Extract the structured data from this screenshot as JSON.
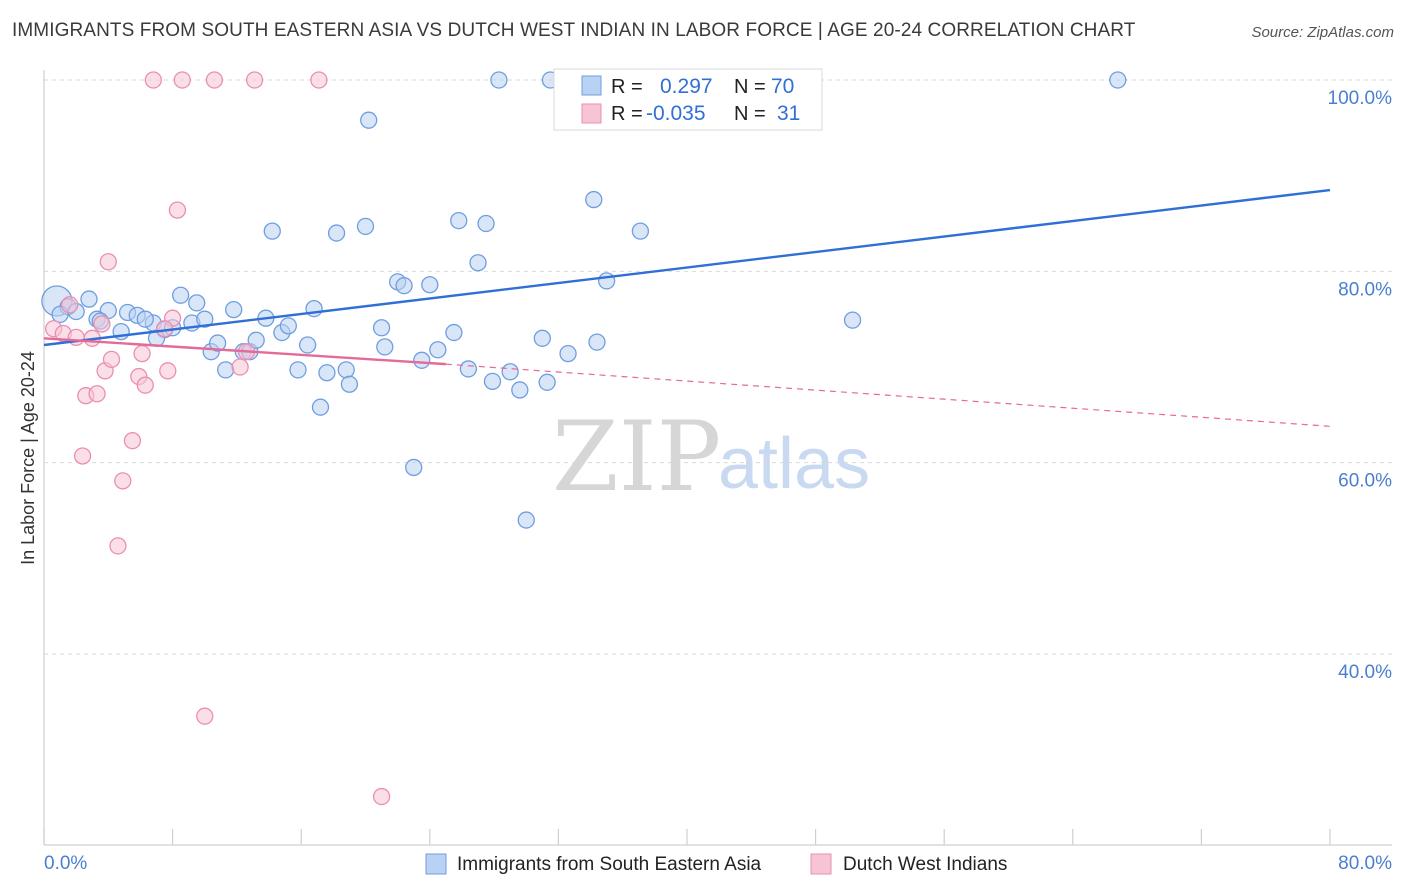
{
  "header": {
    "title": "IMMIGRANTS FROM SOUTH EASTERN ASIA VS DUTCH WEST INDIAN IN LABOR FORCE | AGE 20-24 CORRELATION CHART",
    "source": "Source: ZipAtlas.com"
  },
  "watermark": {
    "zip": "ZIP",
    "atlas": "atlas"
  },
  "colors": {
    "blue": "#2f6fd6",
    "blue_fill": "#b9d2f3",
    "blue_stroke": "#6f9ee0",
    "pink": "#e46a98",
    "pink_fill": "#f7c4d5",
    "pink_stroke": "#ea8fb0",
    "grid": "#d9d9d9",
    "tick_text": "#4a7fd0"
  },
  "legend_top": {
    "rows": [
      {
        "r_label": "R =",
        "r_value": "0.297",
        "n_label": "N =",
        "n_value": "70"
      },
      {
        "r_label": "R =",
        "r_value": "-0.035",
        "n_label": "N =",
        "n_value": "31"
      }
    ]
  },
  "legend_bottom": {
    "items": [
      "Immigrants from South Eastern Asia",
      "Dutch West Indians"
    ]
  },
  "chart_data": {
    "type": "scatter",
    "ylabel": "In Labor Force | Age 20-24",
    "xlabel": "",
    "xlim": [
      0,
      80
    ],
    "ylim": [
      20,
      104
    ],
    "x_tick_labels": [
      "0.0%",
      "80.0%"
    ],
    "y_ticks": [
      40,
      60,
      80,
      100
    ],
    "y_tick_labels": [
      "40.0%",
      "60.0%",
      "80.0%",
      "100.0%"
    ],
    "grid": true,
    "legend_placement": "top-center",
    "series": [
      {
        "name": "Immigrants from South Eastern Asia",
        "color": "#6f9ee0",
        "trend": {
          "x": [
            0,
            80
          ],
          "y": [
            72.3,
            88.5
          ],
          "style": "solid"
        },
        "points": [
          [
            0.8,
            76.9
          ],
          [
            1.5,
            76.3
          ],
          [
            2.0,
            75.8
          ],
          [
            2.8,
            77.1
          ],
          [
            4.0,
            75.9
          ],
          [
            3.3,
            75.0
          ],
          [
            5.2,
            75.7
          ],
          [
            4.8,
            73.7
          ],
          [
            5.8,
            75.4
          ],
          [
            6.8,
            74.6
          ],
          [
            7.5,
            73.9
          ],
          [
            7.0,
            73.0
          ],
          [
            8.0,
            74.1
          ],
          [
            8.5,
            77.5
          ],
          [
            9.2,
            74.6
          ],
          [
            9.5,
            76.7
          ],
          [
            10.0,
            75.0
          ],
          [
            10.4,
            71.6
          ],
          [
            10.8,
            72.5
          ],
          [
            11.3,
            69.7
          ],
          [
            11.8,
            76.0
          ],
          [
            12.4,
            71.6
          ],
          [
            12.8,
            71.6
          ],
          [
            13.2,
            72.8
          ],
          [
            13.8,
            75.1
          ],
          [
            14.2,
            84.2
          ],
          [
            14.8,
            73.6
          ],
          [
            15.2,
            74.3
          ],
          [
            15.8,
            69.7
          ],
          [
            16.4,
            72.3
          ],
          [
            16.8,
            76.1
          ],
          [
            17.2,
            65.8
          ],
          [
            17.6,
            69.4
          ],
          [
            18.2,
            84.0
          ],
          [
            18.8,
            69.7
          ],
          [
            19.0,
            68.2
          ],
          [
            20.0,
            84.7
          ],
          [
            20.2,
            95.8
          ],
          [
            21.0,
            74.1
          ],
          [
            21.2,
            72.1
          ],
          [
            22.0,
            78.9
          ],
          [
            22.4,
            78.5
          ],
          [
            23.0,
            59.5
          ],
          [
            23.5,
            70.7
          ],
          [
            24.0,
            78.6
          ],
          [
            24.5,
            71.8
          ],
          [
            25.5,
            73.6
          ],
          [
            25.8,
            85.3
          ],
          [
            26.4,
            69.8
          ],
          [
            27.0,
            80.9
          ],
          [
            27.5,
            85.0
          ],
          [
            27.9,
            68.5
          ],
          [
            28.3,
            100.0
          ],
          [
            29.0,
            69.5
          ],
          [
            29.6,
            67.6
          ],
          [
            30.0,
            54.0
          ],
          [
            31.0,
            73.0
          ],
          [
            31.3,
            68.4
          ],
          [
            31.5,
            100.0
          ],
          [
            32.6,
            71.4
          ],
          [
            33.0,
            100.0
          ],
          [
            34.2,
            87.5
          ],
          [
            34.4,
            72.6
          ],
          [
            35.0,
            79.0
          ],
          [
            37.1,
            84.2
          ],
          [
            50.3,
            74.9
          ],
          [
            66.8,
            100.0
          ],
          [
            1.0,
            75.5
          ],
          [
            6.3,
            75.0
          ],
          [
            3.5,
            74.8
          ]
        ]
      },
      {
        "name": "Dutch West Indians",
        "color": "#ea8fb0",
        "trend": {
          "x": [
            0,
            25
          ],
          "y": [
            73.0,
            70.3
          ],
          "style": "solid",
          "extension": {
            "x": [
              25,
              80
            ],
            "y": [
              70.3,
              63.8
            ],
            "style": "dashed"
          }
        },
        "points": [
          [
            0.6,
            74.0
          ],
          [
            1.2,
            73.5
          ],
          [
            2.0,
            73.1
          ],
          [
            2.6,
            67.0
          ],
          [
            3.0,
            73.0
          ],
          [
            2.4,
            60.7
          ],
          [
            3.3,
            67.2
          ],
          [
            3.6,
            74.5
          ],
          [
            3.8,
            69.6
          ],
          [
            4.0,
            81.0
          ],
          [
            4.2,
            70.8
          ],
          [
            4.6,
            51.3
          ],
          [
            4.9,
            58.1
          ],
          [
            5.5,
            62.3
          ],
          [
            5.9,
            69.0
          ],
          [
            6.1,
            71.4
          ],
          [
            6.3,
            68.1
          ],
          [
            6.8,
            100.0
          ],
          [
            7.7,
            69.6
          ],
          [
            8.0,
            75.1
          ],
          [
            8.3,
            86.4
          ],
          [
            8.6,
            100.0
          ],
          [
            10.0,
            33.5
          ],
          [
            10.6,
            100.0
          ],
          [
            12.2,
            70.0
          ],
          [
            12.6,
            71.6
          ],
          [
            13.1,
            100.0
          ],
          [
            17.1,
            100.0
          ],
          [
            21.0,
            25.1
          ],
          [
            1.6,
            76.5
          ],
          [
            7.5,
            74.0
          ]
        ]
      }
    ]
  }
}
